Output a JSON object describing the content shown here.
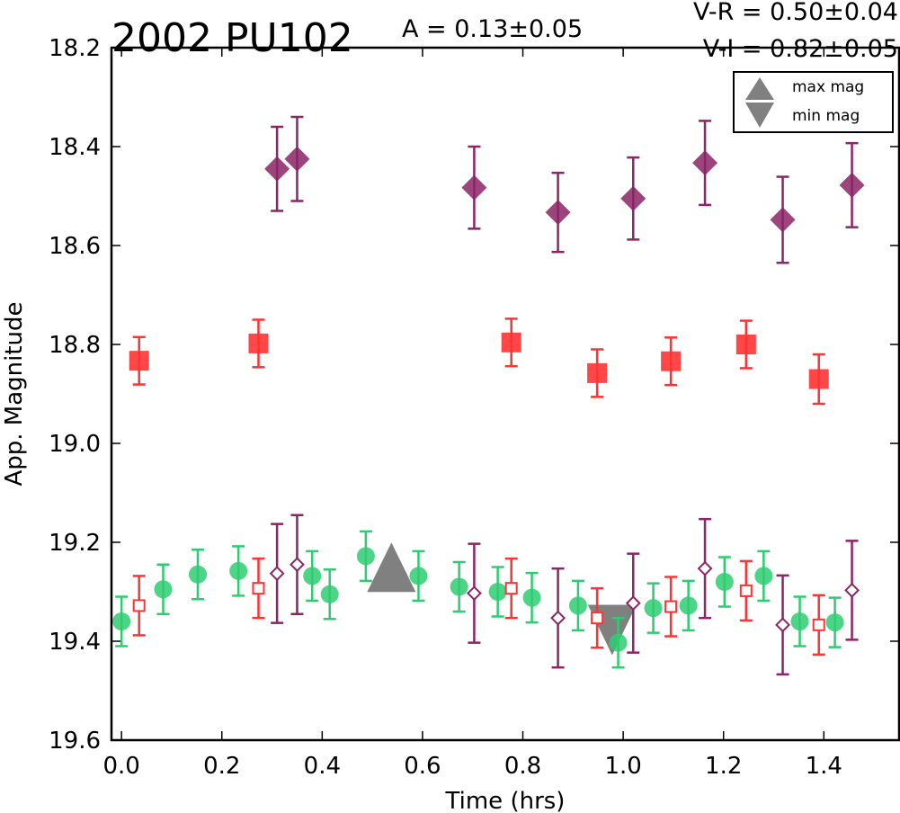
{
  "header": {
    "object_name": "2002 PU102",
    "amplitude": "A  = 0.13±0.05",
    "v_r": "V-R = 0.50±0.04",
    "v_i": "V-I  = 0.82±0.05"
  },
  "chart_data": {
    "type": "scatter",
    "title": "2002 PU102",
    "xlabel": "Time (hrs)",
    "ylabel": "App. Magnitude",
    "xlim": [
      -0.02,
      1.55
    ],
    "ylim": [
      19.6,
      18.2
    ],
    "y_inverted": true,
    "xticks": [
      "0.0",
      "0.2",
      "0.4",
      "0.6",
      "0.8",
      "1.0",
      "1.2",
      "1.4"
    ],
    "xtick_values": [
      0.0,
      0.2,
      0.4,
      0.6,
      0.8,
      1.0,
      1.2,
      1.4
    ],
    "yticks": [
      "18.2",
      "18.4",
      "18.6",
      "18.8",
      "19.0",
      "19.2",
      "19.4",
      "19.6"
    ],
    "ytick_values": [
      18.2,
      18.4,
      18.6,
      18.8,
      19.0,
      19.2,
      19.4,
      19.6
    ],
    "grid": false,
    "legend_position": "top-right",
    "legend": [
      {
        "label": "max mag",
        "marker": "triangle-up",
        "color": "#808080"
      },
      {
        "label": "min mag",
        "marker": "triangle-down",
        "color": "#808080"
      }
    ],
    "series": [
      {
        "key": "green",
        "marker": "circle",
        "color": "#2ecc71",
        "filled": true,
        "points": [
          {
            "x": 0.0,
            "y": 19.36,
            "err": 0.05
          },
          {
            "x": 0.083,
            "y": 19.295,
            "err": 0.05
          },
          {
            "x": 0.152,
            "y": 19.265,
            "err": 0.05
          },
          {
            "x": 0.233,
            "y": 19.258,
            "err": 0.05
          },
          {
            "x": 0.38,
            "y": 19.268,
            "err": 0.05
          },
          {
            "x": 0.415,
            "y": 19.305,
            "err": 0.05
          },
          {
            "x": 0.487,
            "y": 19.228,
            "err": 0.05
          },
          {
            "x": 0.592,
            "y": 19.268,
            "err": 0.05
          },
          {
            "x": 0.673,
            "y": 19.29,
            "err": 0.05
          },
          {
            "x": 0.75,
            "y": 19.3,
            "err": 0.05
          },
          {
            "x": 0.818,
            "y": 19.312,
            "err": 0.05
          },
          {
            "x": 0.91,
            "y": 19.328,
            "err": 0.05
          },
          {
            "x": 0.99,
            "y": 19.403,
            "err": 0.05
          },
          {
            "x": 1.06,
            "y": 19.333,
            "err": 0.05
          },
          {
            "x": 1.13,
            "y": 19.328,
            "err": 0.05
          },
          {
            "x": 1.202,
            "y": 19.28,
            "err": 0.05
          },
          {
            "x": 1.28,
            "y": 19.268,
            "err": 0.05
          },
          {
            "x": 1.352,
            "y": 19.36,
            "err": 0.05
          },
          {
            "x": 1.422,
            "y": 19.362,
            "err": 0.05
          }
        ]
      },
      {
        "key": "red-filled",
        "marker": "square",
        "color": "#ff3333",
        "filled": true,
        "points": [
          {
            "x": 0.035,
            "y": 18.833,
            "err": 0.048
          },
          {
            "x": 0.273,
            "y": 18.798,
            "err": 0.048
          },
          {
            "x": 0.777,
            "y": 18.796,
            "err": 0.048
          },
          {
            "x": 0.948,
            "y": 18.858,
            "err": 0.048
          },
          {
            "x": 1.095,
            "y": 18.834,
            "err": 0.048
          },
          {
            "x": 1.245,
            "y": 18.8,
            "err": 0.048
          },
          {
            "x": 1.39,
            "y": 18.87,
            "err": 0.05
          }
        ]
      },
      {
        "key": "red-open",
        "marker": "square",
        "color": "#ff3333",
        "filled": false,
        "points": [
          {
            "x": 0.035,
            "y": 19.328,
            "err": 0.06
          },
          {
            "x": 0.273,
            "y": 19.293,
            "err": 0.06
          },
          {
            "x": 0.777,
            "y": 19.293,
            "err": 0.06
          },
          {
            "x": 0.948,
            "y": 19.353,
            "err": 0.06
          },
          {
            "x": 1.095,
            "y": 19.33,
            "err": 0.06
          },
          {
            "x": 1.245,
            "y": 19.298,
            "err": 0.06
          },
          {
            "x": 1.39,
            "y": 19.367,
            "err": 0.06
          }
        ]
      },
      {
        "key": "purple-filled",
        "marker": "diamond",
        "color": "#8b2566",
        "filled": true,
        "points": [
          {
            "x": 0.31,
            "y": 18.445,
            "err": 0.085
          },
          {
            "x": 0.35,
            "y": 18.425,
            "err": 0.085
          },
          {
            "x": 0.703,
            "y": 18.483,
            "err": 0.083
          },
          {
            "x": 0.87,
            "y": 18.533,
            "err": 0.08
          },
          {
            "x": 1.02,
            "y": 18.505,
            "err": 0.083
          },
          {
            "x": 1.163,
            "y": 18.433,
            "err": 0.085
          },
          {
            "x": 1.318,
            "y": 18.548,
            "err": 0.087
          },
          {
            "x": 1.456,
            "y": 18.478,
            "err": 0.085
          }
        ]
      },
      {
        "key": "purple-open",
        "marker": "diamond",
        "color": "#8b2566",
        "filled": false,
        "points": [
          {
            "x": 0.31,
            "y": 19.263,
            "err": 0.1
          },
          {
            "x": 0.35,
            "y": 19.245,
            "err": 0.1
          },
          {
            "x": 0.703,
            "y": 19.303,
            "err": 0.1
          },
          {
            "x": 0.87,
            "y": 19.353,
            "err": 0.1
          },
          {
            "x": 1.02,
            "y": 19.323,
            "err": 0.1
          },
          {
            "x": 1.163,
            "y": 19.253,
            "err": 0.1
          },
          {
            "x": 1.318,
            "y": 19.367,
            "err": 0.1
          },
          {
            "x": 1.456,
            "y": 19.297,
            "err": 0.1
          }
        ]
      }
    ],
    "extrema": [
      {
        "label": "max mag",
        "marker": "triangle-up",
        "x": 0.538,
        "y": 19.255,
        "color": "#808080"
      },
      {
        "label": "min mag",
        "marker": "triangle-down",
        "x": 0.978,
        "y": 19.37,
        "color": "#808080"
      }
    ]
  }
}
